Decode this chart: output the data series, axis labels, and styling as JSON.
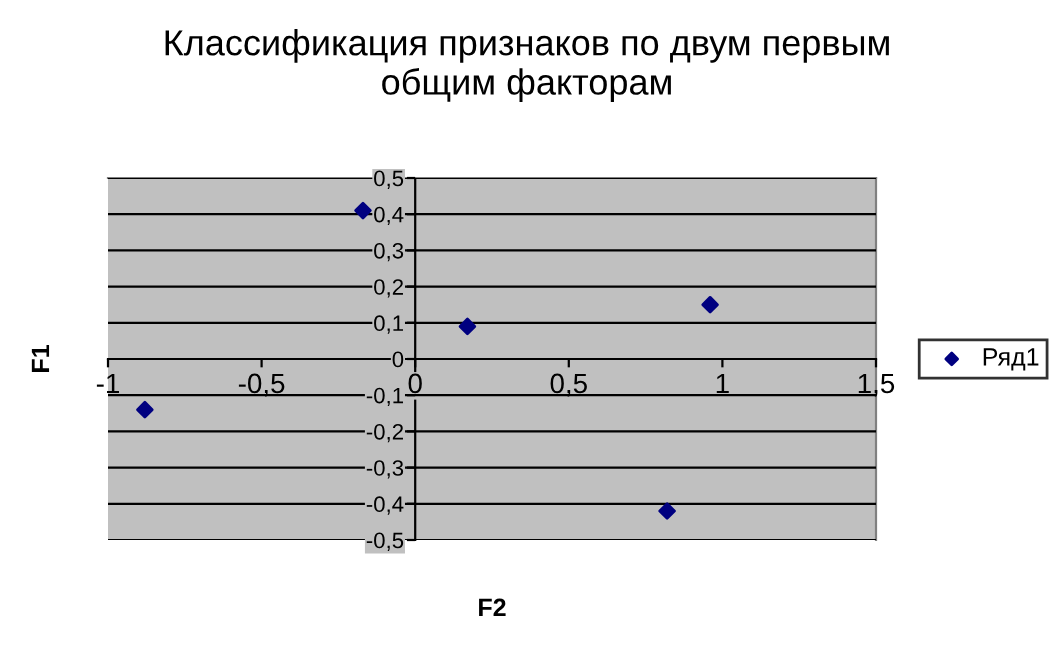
{
  "chart_data": {
    "type": "scatter",
    "title": "Классификация признаков по двум первым\nобщим факторам",
    "xlabel": "F2",
    "ylabel": "F1",
    "x": [
      -0.88,
      -0.17,
      0.17,
      0.96,
      0.82
    ],
    "series": [
      {
        "name": "Ряд1",
        "color": "#000080",
        "values": [
          -0.14,
          0.41,
          0.09,
          0.15,
          -0.42
        ]
      }
    ],
    "xlim": [
      -1,
      1.5
    ],
    "xticks": [
      {
        "value": -1,
        "label": "-1"
      },
      {
        "value": -0.5,
        "label": "-0,5"
      },
      {
        "value": 0,
        "label": "0"
      },
      {
        "value": 0.5,
        "label": "0,5"
      },
      {
        "value": 1,
        "label": "1"
      },
      {
        "value": 1.5,
        "label": "1,5"
      }
    ],
    "ylim": [
      -0.5,
      0.5
    ],
    "yticks": [
      {
        "value": -0.5,
        "label": "-0,5"
      },
      {
        "value": -0.4,
        "label": "-0,4"
      },
      {
        "value": -0.3,
        "label": "-0,3"
      },
      {
        "value": -0.2,
        "label": "-0,2"
      },
      {
        "value": -0.1,
        "label": "-0,1"
      },
      {
        "value": 0,
        "label": "0"
      },
      {
        "value": 0.1,
        "label": "0,1"
      },
      {
        "value": 0.2,
        "label": "0,2"
      },
      {
        "value": 0.3,
        "label": "0,3"
      },
      {
        "value": 0.4,
        "label": "0,4"
      },
      {
        "value": 0.5,
        "label": "0,5"
      }
    ],
    "grid": "y",
    "legend": "right",
    "marker": "diamond"
  }
}
